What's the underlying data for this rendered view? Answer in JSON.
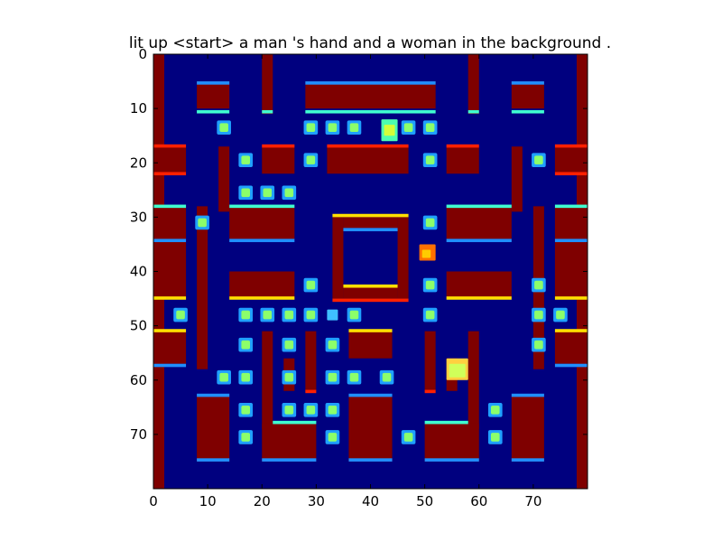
{
  "figure": {
    "title": "lit up <start> a man 's hand and a woman in the background ."
  },
  "chart_data": {
    "type": "heatmap",
    "colormap": "jet",
    "title": "lit up <start> a man 's hand and a woman in the background .",
    "xlabel": "",
    "ylabel": "",
    "xlim": [
      0,
      80
    ],
    "ylim": [
      80,
      0
    ],
    "x_ticks": [
      "0",
      "10",
      "20",
      "30",
      "40",
      "50",
      "60",
      "70"
    ],
    "y_ticks": [
      "0",
      "10",
      "20",
      "30",
      "40",
      "50",
      "60",
      "70"
    ],
    "grid": false,
    "colors": {
      "background": "#00007f",
      "wall": "#7f0000",
      "pellet": "#8cff6a",
      "edge_blue": "#1f8fff",
      "edge_cyan": "#3fffd0",
      "edge_yellow": "#ffe000",
      "edge_red": "#ff2000",
      "sprite": "#d4ff3a"
    }
  }
}
